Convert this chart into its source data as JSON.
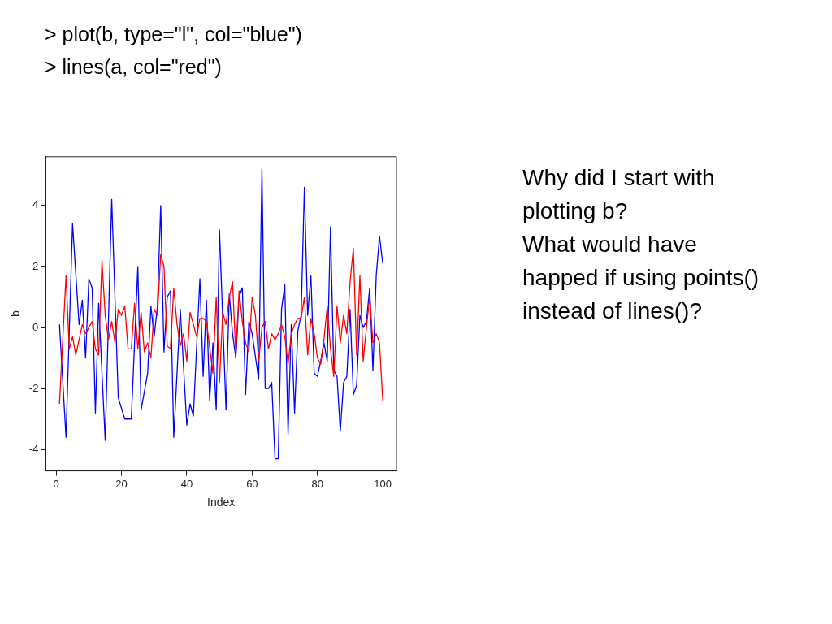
{
  "chart_data": {
    "type": "line",
    "xlabel": "Index",
    "ylabel": "b",
    "xlim": [
      -3.2,
      104.2
    ],
    "ylim": [
      -4.7,
      5.6
    ],
    "xticks": [
      0,
      20,
      40,
      60,
      80,
      100
    ],
    "yticks": [
      -4,
      -2,
      0,
      2,
      4
    ],
    "grid": false,
    "legend": false,
    "marker": "none",
    "line_style": "solid",
    "annotations": [
      "> plot(b, type=\"l\", col=\"blue\")",
      "> lines(a, col=\"red\")",
      "Why did I start with plotting b?",
      "What would have happed if using points() instead of lines()?"
    ],
    "series": [
      {
        "color": "#0000ff",
        "x": [
          1,
          3,
          5,
          7,
          8,
          9,
          10,
          11,
          12,
          13,
          15,
          17,
          19,
          21,
          23,
          25,
          26,
          28,
          29,
          30,
          31,
          32,
          33,
          34,
          35,
          36,
          38,
          40,
          41,
          42,
          44,
          45,
          46,
          47,
          48,
          49,
          50,
          52,
          53,
          54,
          55,
          56,
          57,
          58,
          59,
          60,
          62,
          63,
          64,
          65,
          66,
          67,
          68,
          69,
          70,
          71,
          72,
          73,
          74,
          75,
          76,
          77,
          78,
          79,
          80,
          81,
          82,
          83,
          84,
          85,
          86,
          87,
          88,
          89,
          90,
          91,
          92,
          93,
          94,
          95,
          96,
          97,
          98,
          99,
          100
        ],
        "values": [
          0.1,
          -3.6,
          3.4,
          0.1,
          0.9,
          -1.0,
          1.6,
          1.3,
          -2.8,
          0.8,
          -3.7,
          4.2,
          -2.3,
          -3.0,
          -3.0,
          2.0,
          -2.7,
          -1.5,
          0.7,
          -0.3,
          0.7,
          4.0,
          -0.8,
          1.0,
          1.2,
          -3.6,
          0.6,
          -3.2,
          -2.5,
          -2.9,
          1.6,
          -1.6,
          0.9,
          -2.4,
          -0.5,
          -2.7,
          3.2,
          -2.7,
          1.1,
          -0.2,
          -1.0,
          1.0,
          1.3,
          -2.2,
          0.2,
          -0.2,
          -1.7,
          5.2,
          -2.0,
          -2.0,
          -1.8,
          -4.3,
          -4.3,
          0.6,
          1.4,
          -3.5,
          0.1,
          -2.8,
          -0.1,
          0.4,
          4.6,
          0.4,
          1.7,
          -1.5,
          -1.6,
          -1.1,
          -0.5,
          -1.1,
          3.3,
          -1.4,
          -1.6,
          -3.4,
          -1.8,
          -1.6,
          0.6,
          -2.2,
          -1.9,
          0.4,
          0,
          0.2,
          1.3,
          -1.4,
          1.7,
          3.0,
          2.1
        ]
      },
      {
        "color": "#ff0000",
        "x": [
          1,
          3,
          4,
          5,
          6,
          8,
          9,
          11,
          12,
          13,
          14,
          15,
          16,
          17,
          18,
          19,
          20,
          21,
          22,
          23,
          24,
          25,
          26,
          27,
          28,
          29,
          30,
          31,
          32,
          33,
          34,
          35,
          36,
          37,
          38,
          39,
          40,
          41,
          43,
          44,
          45,
          46,
          48,
          49,
          50,
          51,
          52,
          53,
          54,
          55,
          56,
          57,
          58,
          59,
          60,
          61,
          62,
          63,
          64,
          65,
          66,
          67,
          68,
          69,
          70,
          71,
          72,
          73,
          74,
          75,
          76,
          77,
          78,
          79,
          80,
          81,
          82,
          83,
          84,
          85,
          86,
          87,
          88,
          89,
          90,
          91,
          92,
          93,
          94,
          95,
          96,
          97,
          98,
          99,
          100
        ],
        "values": [
          -2.5,
          1.7,
          -0.7,
          -0.3,
          -0.9,
          0.1,
          -0.2,
          0.2,
          -0.7,
          -0.9,
          2.2,
          0.4,
          -0.4,
          0.2,
          -0.5,
          0.6,
          0.4,
          0.7,
          -0.7,
          -0.7,
          0.8,
          -0.7,
          0.5,
          -0.8,
          -0.5,
          -1.0,
          0.6,
          0.4,
          2.4,
          2.0,
          -0.6,
          -0.7,
          1.3,
          0.1,
          -0.6,
          -0.2,
          -1.1,
          0.5,
          -0.3,
          0.3,
          0.3,
          0.2,
          -1.5,
          1.0,
          -1.8,
          0.5,
          0.1,
          1.0,
          1.5,
          -0.9,
          1.2,
          0.2,
          -0.5,
          -0.8,
          1.0,
          0.4,
          -1.1,
          0,
          0.2,
          -0.7,
          -0.2,
          -0.4,
          -0.2,
          0.1,
          -0.3,
          -1.2,
          -0.2,
          0.1,
          0.3,
          0.3,
          1.0,
          -0.9,
          0.3,
          -0.2,
          -1.0,
          -1.2,
          -0.4,
          0.7,
          -0.7,
          -1.6,
          0.7,
          -0.5,
          0.4,
          -0.2,
          1.5,
          2.6,
          -0.9,
          1.7,
          -1.1,
          0,
          1.0,
          -0.5,
          -0.2,
          -0.5,
          -2.4
        ]
      }
    ]
  }
}
